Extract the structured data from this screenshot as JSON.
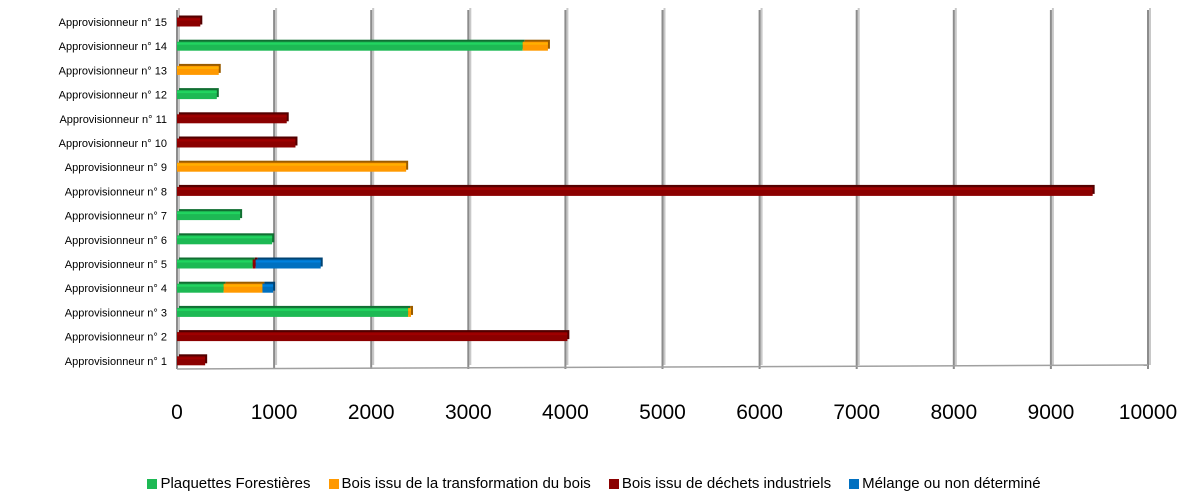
{
  "chart_data": {
    "type": "bar",
    "orientation": "horizontal",
    "stacked": true,
    "categories": [
      "Approvisionneur n° 1",
      "Approvisionneur n° 2",
      "Approvisionneur n° 3",
      "Approvisionneur n° 4",
      "Approvisionneur n° 5",
      "Approvisionneur n° 6",
      "Approvisionneur n° 7",
      "Approvisionneur n° 8",
      "Approvisionneur n° 9",
      "Approvisionneur n° 10",
      "Approvisionneur n° 11",
      "Approvisionneur n° 12",
      "Approvisionneur n° 13",
      "Approvisionneur n° 14",
      "Approvisionneur n° 15"
    ],
    "series": [
      {
        "name": "Plaquettes Forestières",
        "color": "#1db954",
        "values": [
          0,
          0,
          2380,
          480,
          780,
          980,
          650,
          0,
          0,
          0,
          0,
          410,
          0,
          3560,
          0
        ]
      },
      {
        "name": "Bois issu de la transformation du bois",
        "color": "#ff9900",
        "values": [
          0,
          0,
          30,
          400,
          0,
          0,
          0,
          0,
          2360,
          0,
          0,
          0,
          430,
          260,
          0
        ]
      },
      {
        "name": "Bois issu de déchets industriels",
        "color": "#8b0000",
        "values": [
          290,
          4020,
          0,
          0,
          30,
          0,
          0,
          9430,
          0,
          1220,
          1130,
          0,
          0,
          0,
          240
        ]
      },
      {
        "name": "Mélange ou non déterminé",
        "color": "#0070c0",
        "values": [
          0,
          0,
          0,
          110,
          670,
          0,
          0,
          0,
          0,
          0,
          0,
          0,
          0,
          0,
          0
        ]
      }
    ],
    "xlim": [
      0,
      10000
    ],
    "xticks": [
      "0",
      "1000",
      "2000",
      "3000",
      "4000",
      "5000",
      "6000",
      "7000",
      "8000",
      "9000",
      "10000"
    ],
    "grid": true,
    "legend_position": "bottom"
  }
}
